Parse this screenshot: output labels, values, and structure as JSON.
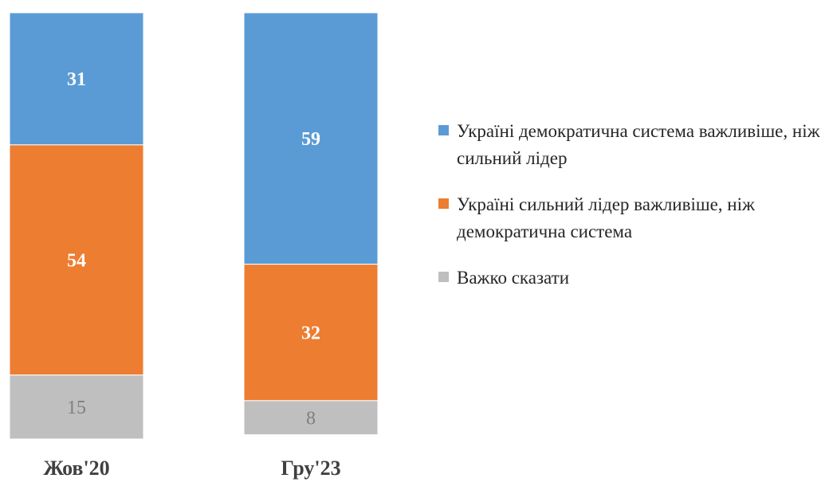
{
  "chart_data": {
    "type": "bar",
    "stacked": true,
    "orientation": "vertical",
    "categories": [
      "Жов'20",
      "Гру'23"
    ],
    "series": [
      {
        "name": "Україні демократична система важливіше, ніж сильний лідер",
        "values": [
          31,
          59
        ],
        "color": "#5b9bd5",
        "label_color": "#ffffff",
        "label_bold": true
      },
      {
        "name": "Україні сильний лідер важливіше, ніж демократична система",
        "values": [
          54,
          32
        ],
        "color": "#ed7d31",
        "label_color": "#ffffff",
        "label_bold": true
      },
      {
        "name": "Важко сказати",
        "values": [
          15,
          8
        ],
        "color": "#bfbfbf",
        "label_color": "#7f7f7f",
        "label_bold": false
      }
    ],
    "legend_position": "right",
    "grid": false,
    "ylim": [
      0,
      100
    ]
  }
}
